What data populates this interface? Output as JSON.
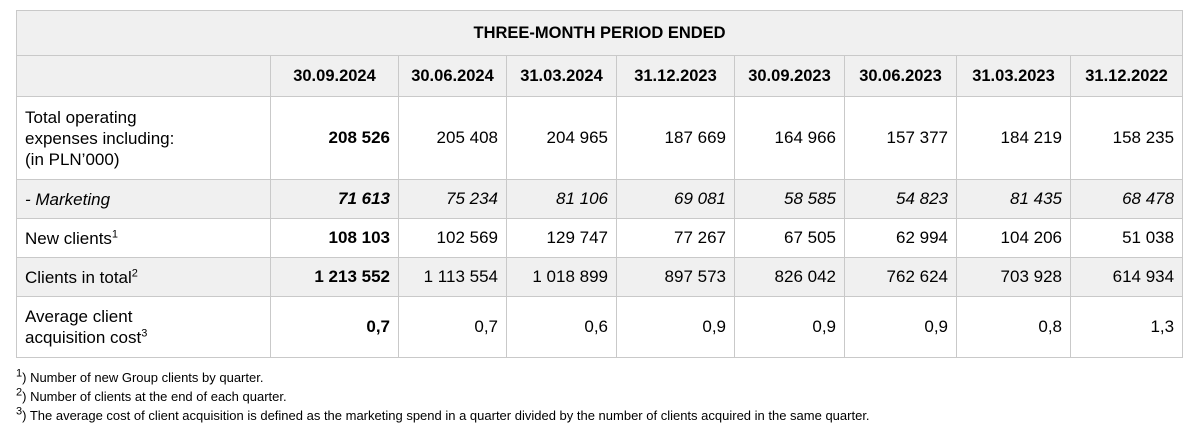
{
  "table": {
    "title": "THREE-MONTH PERIOD ENDED",
    "columns": [
      "30.09.2024",
      "30.06.2024",
      "31.03.2024",
      "31.12.2023",
      "30.09.2023",
      "30.06.2023",
      "31.03.2023",
      "31.12.2022"
    ],
    "rows": [
      {
        "label_lines": [
          "Total operating",
          "expenses including:",
          "(in PLN’000)"
        ],
        "values": [
          "208 526",
          "205 408",
          "204 965",
          "187 669",
          "164 966",
          "157 377",
          "184 219",
          "158 235"
        ]
      },
      {
        "label": "- Marketing",
        "values": [
          "71 613",
          "75 234",
          "81 106",
          "69 081",
          "58 585",
          "54 823",
          "81 435",
          "68 478"
        ]
      },
      {
        "label": "New clients",
        "sup": "1",
        "values": [
          "108 103",
          "102 569",
          "129 747",
          "77 267",
          "67 505",
          "62 994",
          "104 206",
          "51 038"
        ]
      },
      {
        "label": "Clients in total",
        "sup": "2",
        "values": [
          "1 213 552",
          "1 113 554",
          "1 018 899",
          "897 573",
          "826 042",
          "762 624",
          "703 928",
          "614 934"
        ]
      },
      {
        "label_lines": [
          "Average client",
          "acquisition cost"
        ],
        "sup": "3",
        "values": [
          "0,7",
          "0,7",
          "0,6",
          "0,9",
          "0,9",
          "0,9",
          "0,8",
          "1,3"
        ]
      }
    ]
  },
  "footnotes": [
    {
      "marker": "1",
      "text": ") Number of new Group clients by quarter."
    },
    {
      "marker": "2",
      "text": ") Number of clients at the end of each quarter."
    },
    {
      "marker": "3",
      "text": ") The average cost of client acquisition is defined as the marketing spend in a quarter divided by the number of clients acquired in the same quarter."
    }
  ]
}
